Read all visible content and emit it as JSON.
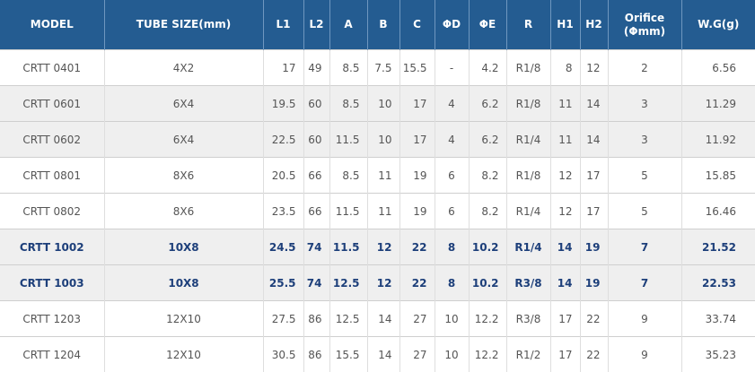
{
  "headers": {
    "model": "MODEL",
    "tube": "TUBE SIZE(mm)",
    "l1": "L1",
    "l2": "L2",
    "a": "A",
    "b": "B",
    "c": "C",
    "d": "ΦD",
    "e": "ΦE",
    "r": "R",
    "h1": "H1",
    "h2": "H2",
    "orifice_line1": "Orifice",
    "orifice_line2": "(Φmm)",
    "wg": "W.G(g)"
  },
  "rows": [
    {
      "model": "CRTT 0401",
      "tube": "4X2",
      "l1": "17",
      "l2": "49",
      "a": "8.5",
      "b": "7.5",
      "c": "15.5",
      "d": "-",
      "e": "4.2",
      "r": "R1/8",
      "h1": "8",
      "h2": "12",
      "orifice": "2",
      "wg": "6.56"
    },
    {
      "model": "CRTT 0601",
      "tube": "6X4",
      "l1": "19.5",
      "l2": "60",
      "a": "8.5",
      "b": "10",
      "c": "17",
      "d": "4",
      "e": "6.2",
      "r": "R1/8",
      "h1": "11",
      "h2": "14",
      "orifice": "3",
      "wg": "11.29"
    },
    {
      "model": "CRTT 0602",
      "tube": "6X4",
      "l1": "22.5",
      "l2": "60",
      "a": "11.5",
      "b": "10",
      "c": "17",
      "d": "4",
      "e": "6.2",
      "r": "R1/4",
      "h1": "11",
      "h2": "14",
      "orifice": "3",
      "wg": "11.92"
    },
    {
      "model": "CRTT 0801",
      "tube": "8X6",
      "l1": "20.5",
      "l2": "66",
      "a": "8.5",
      "b": "11",
      "c": "19",
      "d": "6",
      "e": "8.2",
      "r": "R1/8",
      "h1": "12",
      "h2": "17",
      "orifice": "5",
      "wg": "15.85"
    },
    {
      "model": "CRTT 0802",
      "tube": "8X6",
      "l1": "23.5",
      "l2": "66",
      "a": "11.5",
      "b": "11",
      "c": "19",
      "d": "6",
      "e": "8.2",
      "r": "R1/4",
      "h1": "12",
      "h2": "17",
      "orifice": "5",
      "wg": "16.46"
    },
    {
      "model": "CRTT 1002",
      "tube": "10X8",
      "l1": "24.5",
      "l2": "74",
      "a": "11.5",
      "b": "12",
      "c": "22",
      "d": "8",
      "e": "10.2",
      "r": "R1/4",
      "h1": "14",
      "h2": "19",
      "orifice": "7",
      "wg": "21.52"
    },
    {
      "model": "CRTT 1003",
      "tube": "10X8",
      "l1": "25.5",
      "l2": "74",
      "a": "12.5",
      "b": "12",
      "c": "22",
      "d": "8",
      "e": "10.2",
      "r": "R3/8",
      "h1": "14",
      "h2": "19",
      "orifice": "7",
      "wg": "22.53"
    },
    {
      "model": "CRTT 1203",
      "tube": "12X10",
      "l1": "27.5",
      "l2": "86",
      "a": "12.5",
      "b": "14",
      "c": "27",
      "d": "10",
      "e": "12.2",
      "r": "R3/8",
      "h1": "17",
      "h2": "22",
      "orifice": "9",
      "wg": "33.74"
    },
    {
      "model": "CRTT 1204",
      "tube": "12X10",
      "l1": "30.5",
      "l2": "86",
      "a": "15.5",
      "b": "14",
      "c": "27",
      "d": "10",
      "e": "12.2",
      "r": "R1/2",
      "h1": "17",
      "h2": "22",
      "orifice": "9",
      "wg": "35.23"
    }
  ],
  "colors": {
    "header_bg": "#245c91",
    "header_text": "#ffffff",
    "row_shade": "#efefef",
    "highlight_text": "#1d3f7a",
    "body_text": "#555555"
  }
}
